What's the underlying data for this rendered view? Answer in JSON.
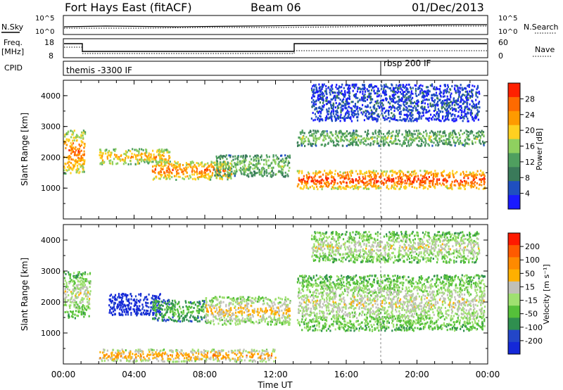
{
  "header": {
    "station": "Fort Hays East (fitACF)",
    "beam": "Beam 06",
    "date": "01/Dec/2013"
  },
  "panels": {
    "nsky": {
      "label": "N.Sky",
      "left_ticks": [
        "10^5",
        "10^0"
      ],
      "right_ticks": [
        "10^5",
        "10^0"
      ],
      "right_label": "N.Search"
    },
    "freq": {
      "label": "Freq.",
      "unit": "[MHz]",
      "left_ticks": [
        "18",
        "8"
      ],
      "right_ticks": [
        "60",
        "0"
      ],
      "right_label": "Nave"
    },
    "cpid": {
      "label": "CPID",
      "modes": [
        "themis -3300 IF",
        "rbsp 200 IF"
      ]
    }
  },
  "colors": {
    "power": [
      "#1a1aff",
      "#1f4fbf",
      "#3a7a5a",
      "#4f9f5f",
      "#8fd05f",
      "#ffd020",
      "#ff9a00",
      "#ff6a00",
      "#ff2000"
    ],
    "velocity": [
      "#1428d8",
      "#2346c8",
      "#2f8f4f",
      "#55c03a",
      "#9fe070",
      "#c0c0b8",
      "#ffb000",
      "#ff8a00",
      "#ff5a00",
      "#ff1a00"
    ]
  },
  "chart_data": [
    {
      "type": "heatmap",
      "name": "Power",
      "xlabel": "",
      "ylabel": "Slant Range [km]",
      "x_range_hours": [
        0,
        24
      ],
      "ylim": [
        0,
        4500
      ],
      "y_ticks": [
        1000,
        2000,
        3000,
        4000
      ],
      "colorbar": {
        "label": "Power [dB]",
        "ticks": [
          "28",
          "24",
          "20",
          "16",
          "12",
          "8",
          "4"
        ]
      },
      "bands": [
        {
          "t": [
            0.0,
            1.2
          ],
          "range": [
            1500,
            2900
          ],
          "level": 7
        },
        {
          "t": [
            2.0,
            6.0
          ],
          "range": [
            1800,
            2300
          ],
          "level": 6
        },
        {
          "t": [
            5.0,
            9.5
          ],
          "range": [
            1300,
            1900
          ],
          "level": 7
        },
        {
          "t": [
            8.5,
            12.8
          ],
          "range": [
            1400,
            2100
          ],
          "level": 4
        },
        {
          "t": [
            13.2,
            23.8
          ],
          "range": [
            1000,
            1600
          ],
          "level": 8
        },
        {
          "t": [
            13.2,
            23.8
          ],
          "range": [
            2400,
            2900
          ],
          "level": 4
        },
        {
          "t": [
            14.0,
            23.5
          ],
          "range": [
            3200,
            4400
          ],
          "level": 1
        }
      ]
    },
    {
      "type": "heatmap",
      "name": "Velocity",
      "xlabel": "Time UT",
      "ylabel": "Slant Range [km]",
      "x_range_hours": [
        0,
        24
      ],
      "ylim": [
        0,
        4500
      ],
      "y_ticks": [
        1000,
        2000,
        3000,
        4000
      ],
      "x_ticks": [
        "00:00",
        "04:00",
        "08:00",
        "12:00",
        "16:00",
        "20:00",
        "00:00"
      ],
      "colorbar": {
        "label": "Velocity [m s⁻¹]",
        "ticks": [
          "200",
          "100",
          "50",
          "15",
          "-15",
          "-50",
          "-100",
          "-200"
        ]
      },
      "bands": [
        {
          "t": [
            0.0,
            1.5
          ],
          "range": [
            1500,
            3000
          ],
          "level": 5
        },
        {
          "t": [
            2.5,
            5.5
          ],
          "range": [
            1600,
            2300
          ],
          "level": 0
        },
        {
          "t": [
            5.0,
            8.0
          ],
          "range": [
            1400,
            2100
          ],
          "level": 3
        },
        {
          "t": [
            8.0,
            12.8
          ],
          "range": [
            1300,
            2200
          ],
          "level": 6
        },
        {
          "t": [
            13.2,
            23.8
          ],
          "range": [
            1100,
            2900
          ],
          "level": 5
        },
        {
          "t": [
            2.0,
            12.0
          ],
          "range": [
            100,
            500
          ],
          "level": 7
        },
        {
          "t": [
            14.0,
            23.5
          ],
          "range": [
            3300,
            4300
          ],
          "level": 5
        }
      ]
    }
  ]
}
